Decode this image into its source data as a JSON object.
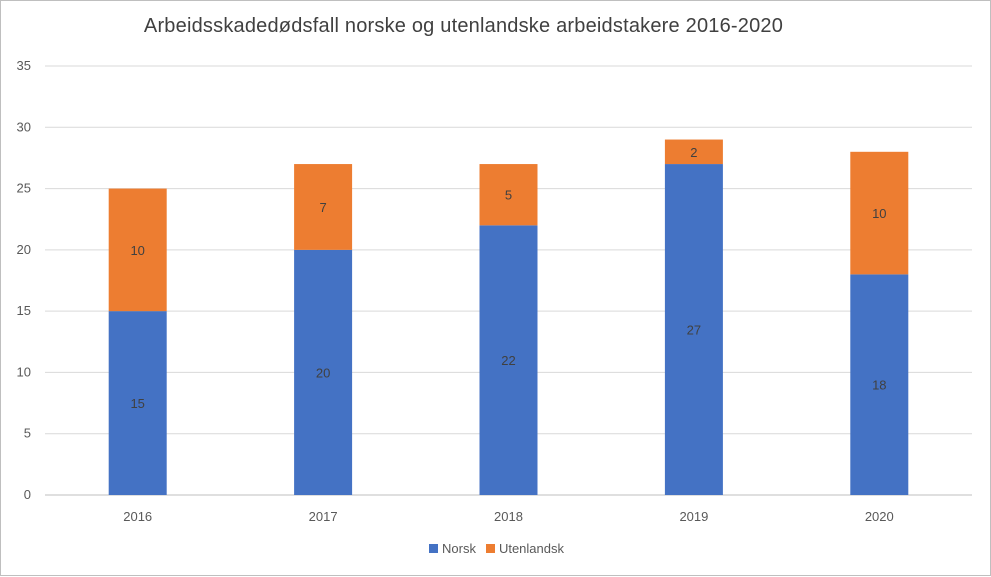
{
  "chart_data": {
    "type": "bar",
    "stacked": true,
    "title": "Arbeidsskadedødsfall norske og utenlandske arbeidstakere 2016-2020",
    "categories": [
      "2016",
      "2017",
      "2018",
      "2019",
      "2020"
    ],
    "series": [
      {
        "name": "Norsk",
        "values": [
          15,
          20,
          22,
          27,
          18
        ],
        "color": "#4472c4"
      },
      {
        "name": "Utenlandsk",
        "values": [
          10,
          7,
          5,
          2,
          10
        ],
        "color": "#ed7d31"
      }
    ],
    "ylim": [
      0,
      35
    ],
    "yticks": [
      0,
      5,
      10,
      15,
      20,
      25,
      30,
      35
    ],
    "grid": true,
    "legend": "bottom"
  }
}
